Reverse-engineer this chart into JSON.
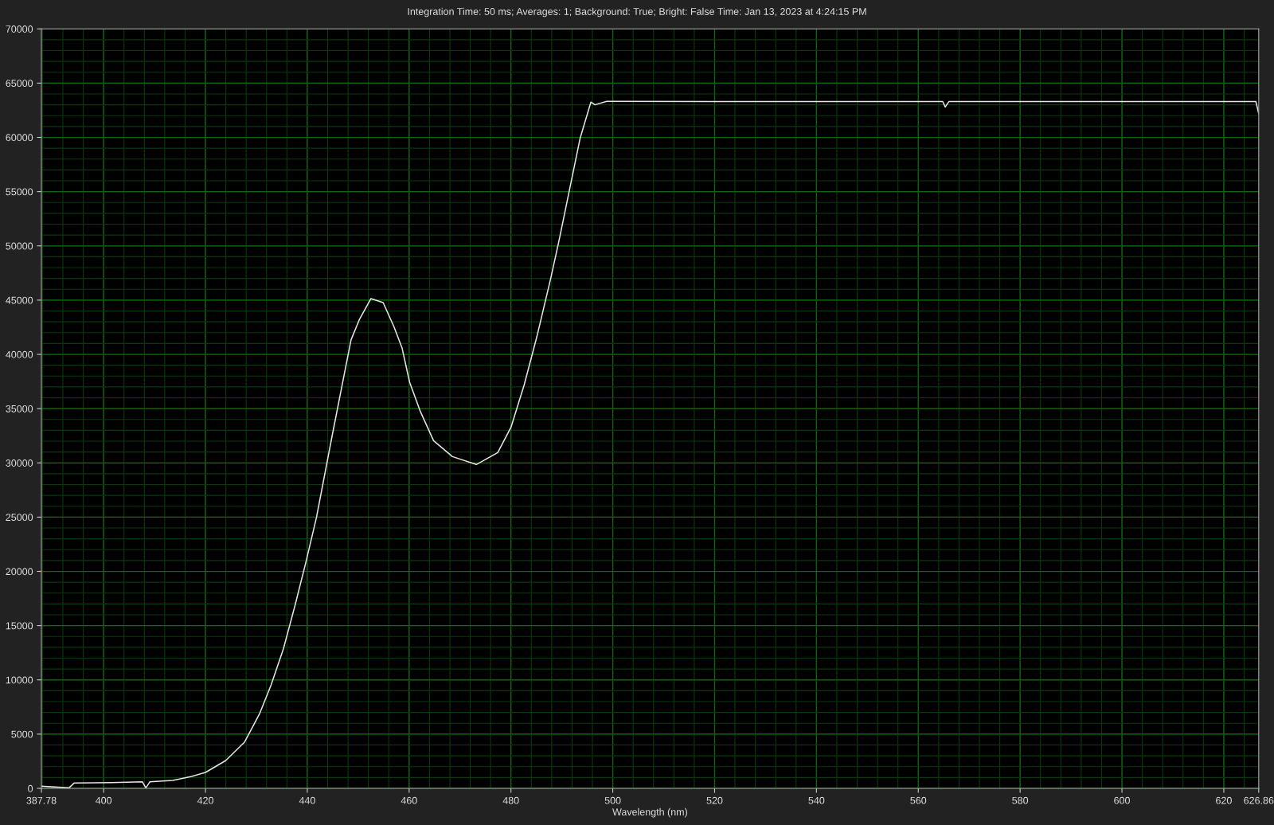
{
  "chart_data": {
    "type": "line",
    "title": "Integration Time: 50 ms; Averages: 1; Background: True; Bright: False Time: Jan 13, 2023 at 4:24:15 PM",
    "xlabel": "Wavelength (nm)",
    "series": [
      {
        "color": "#e6e6e6",
        "x": [
          387.78,
          393.2,
          394.2,
          401.6,
          407.6,
          408.3,
          409.1,
          413.6,
          417.3,
          420.0,
          424.0,
          427.7,
          430.6,
          432.9,
          435.3,
          437.6,
          439.7,
          441.8,
          445.0,
          448.6,
          450.2,
          452.5,
          454.9,
          457.0,
          458.6,
          460.1,
          462.2,
          464.8,
          468.5,
          473.2,
          477.4,
          480.0,
          482.6,
          485.2,
          487.8,
          489.4,
          493.6,
          495.7,
          496.5,
          498.8,
          520.0,
          540.0,
          564.8,
          565.3,
          566.0,
          580.0,
          600.0,
          620.0,
          626.3,
          626.86
        ],
        "values": [
          200,
          50,
          490,
          540,
          610,
          50,
          610,
          730,
          1100,
          1470,
          2570,
          4280,
          6850,
          9540,
          12840,
          16880,
          20800,
          24960,
          32790,
          41350,
          43180,
          45140,
          44770,
          42570,
          40610,
          37430,
          34740,
          32050,
          30580,
          29850,
          30950,
          33270,
          37190,
          41840,
          46980,
          50400,
          59950,
          63250,
          63000,
          63320,
          63300,
          63300,
          63300,
          62800,
          63300,
          63300,
          63300,
          63300,
          63300,
          62200
        ]
      }
    ],
    "xlim": [
      387.78,
      626.86
    ],
    "xticks": [
      {
        "value": 387.78,
        "label": "387.78"
      },
      400,
      420,
      440,
      460,
      480,
      500,
      520,
      540,
      560,
      580,
      600,
      620,
      {
        "value": 626.86,
        "label": "626.86"
      }
    ],
    "ylim": [
      0,
      70000
    ],
    "yticks": [
      0,
      5000,
      10000,
      15000,
      20000,
      25000,
      30000,
      35000,
      40000,
      45000,
      50000,
      55000,
      60000,
      65000,
      70000
    ],
    "grid": true,
    "legend": false,
    "marker": "none",
    "line_style": "solid"
  }
}
